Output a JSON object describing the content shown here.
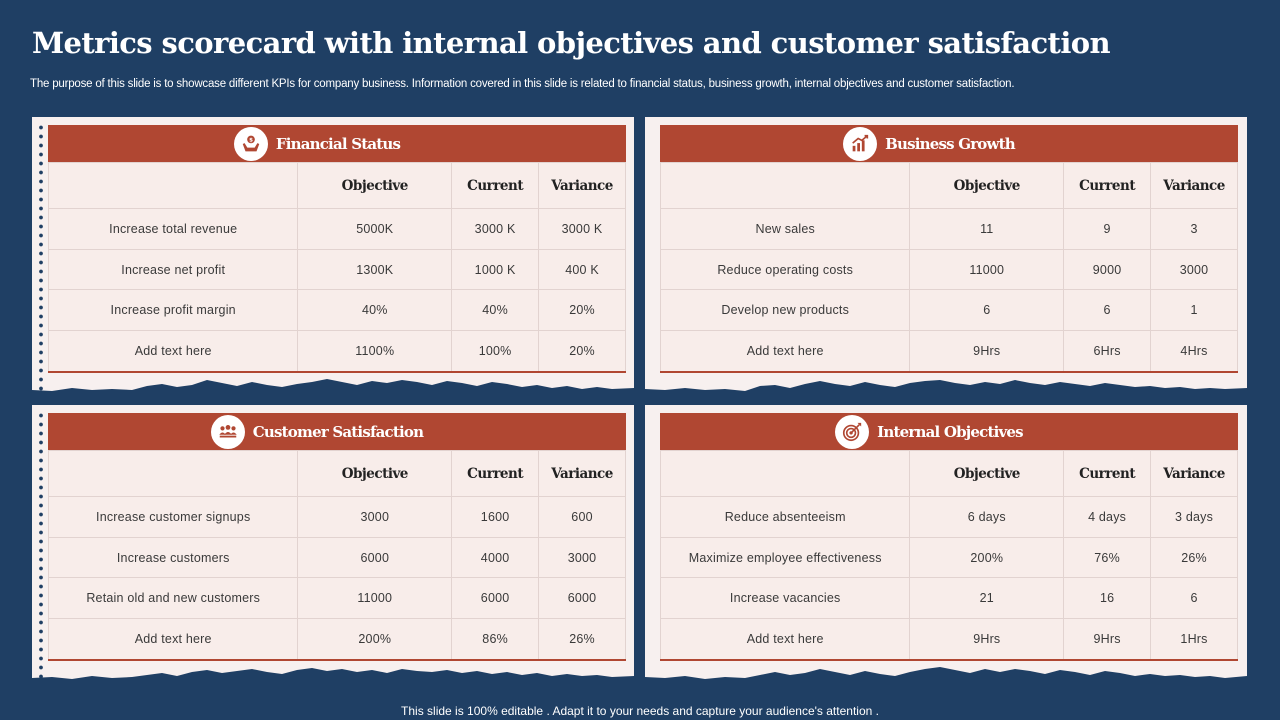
{
  "title": "Metrics scorecard with internal objectives and customer satisfaction",
  "subtitle": "The purpose of this slide is to showcase different KPIs for company business. Information covered in this slide is related to financial status, business growth, internal objectives and customer satisfaction.",
  "footer": "This slide is 100% editable . Adapt it to your needs and capture your audience's attention .",
  "colors": {
    "background": "#1f3f64",
    "header": "#b04732",
    "card": "#f7f0ef"
  },
  "columns": {
    "objective": "Objective",
    "current": "Current",
    "variance": "Variance"
  },
  "cards": [
    {
      "title": "Financial Status",
      "icon": "money-hand-icon",
      "rows": [
        [
          "Increase total revenue",
          "5000K",
          "3000 K",
          "3000 K"
        ],
        [
          "Increase  net  profit",
          "1300K",
          "1000 K",
          "400 K"
        ],
        [
          "Increase  profit  margin",
          "40%",
          "40%",
          "20%"
        ],
        [
          "Add text here",
          "1100%",
          "100%",
          "20%"
        ]
      ]
    },
    {
      "title": "Business Growth",
      "icon": "growth-chart-icon",
      "rows": [
        [
          "New sales",
          "11",
          "9",
          "3"
        ],
        [
          "Reduce  operating  costs",
          "11000",
          "9000",
          "3000"
        ],
        [
          "Develop  new  products",
          "6",
          "6",
          "1"
        ],
        [
          "Add text here",
          "9Hrs",
          "6Hrs",
          "4Hrs"
        ]
      ]
    },
    {
      "title": "Customer Satisfaction",
      "icon": "customers-icon",
      "rows": [
        [
          "Increase customer signups",
          "3000",
          "1600",
          "600"
        ],
        [
          "Increase customers",
          "6000",
          "4000",
          "3000"
        ],
        [
          "Retain old and new customers",
          "11000",
          "6000",
          "6000"
        ],
        [
          "Add text here",
          "200%",
          "86%",
          "26%"
        ]
      ]
    },
    {
      "title": "Internal Objectives",
      "icon": "target-icon",
      "rows": [
        [
          "Reduce  absenteeism",
          "6 days",
          "4 days",
          "3 days"
        ],
        [
          "Maximize  employee  effectiveness",
          "200%",
          "76%",
          "26%"
        ],
        [
          "Increase  vacancies",
          "21",
          "16",
          "6"
        ],
        [
          "Add text here",
          "9Hrs",
          "9Hrs",
          "1Hrs"
        ]
      ]
    }
  ]
}
